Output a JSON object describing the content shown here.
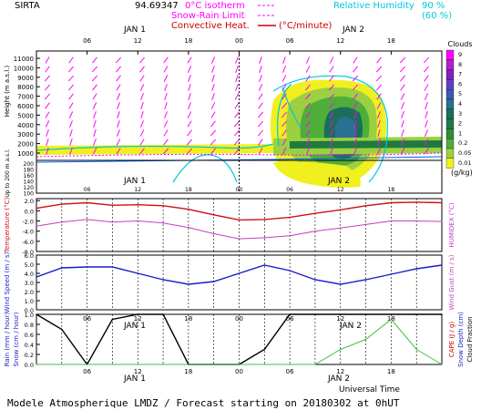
{
  "header": {
    "station": "SIRTA",
    "coords": "94.69347",
    "legend_isotherm": "0°C isotherm",
    "legend_snow_rain": "Snow-Rain Limit",
    "legend_convective": "Convective Heat.",
    "legend_convective_unit": "(°C/minute)",
    "rh_label": "Relative Humidity",
    "rh_90": "90 %",
    "rh_60": "(60 %)",
    "jan1": "JAN 1",
    "jan2": "JAN 2",
    "x_ticks": [
      "06",
      "12",
      "18",
      "00",
      "06",
      "12",
      "18"
    ]
  },
  "footer": {
    "universal_time": "Universal Time",
    "model_line": "Modele Atmospherique LMDZ / Forecast starting on 20180302 at 0hUT"
  },
  "colors": {
    "axes": "#000000",
    "wind_arrow": "#ff00ff",
    "temperature": "#d01010",
    "humidex": "#c040c0",
    "wind": "#1a1acc",
    "snow_rain": "#ff00ff",
    "convective": "#cc0000",
    "rh90": "#00c8d8",
    "precip": "#000000",
    "cape": "#40c040"
  },
  "chart_data": [
    {
      "type": "heatmap",
      "panel": "clouds",
      "ylabel": "Height (m a.s.l.)",
      "ylabel2": "Up to 200 m a.s.l.",
      "y_ticks_upper": [
        11000,
        10000,
        9000,
        8000,
        7000,
        6000,
        5000,
        4000,
        3000,
        2000,
        1000
      ],
      "y_ticks_lower": [
        200,
        180,
        160,
        140,
        120,
        100
      ],
      "colorbar": {
        "title": "Clouds",
        "unit": "(g/kg)",
        "levels": [
          "9",
          "8",
          "7",
          "6",
          "5",
          "4",
          "3",
          "2",
          "1",
          "0.2",
          "0.05",
          "0.01"
        ],
        "colors": [
          "#ff00ff",
          "#b020d0",
          "#8020c0",
          "#6040c8",
          "#3c5ab0",
          "#2a7090",
          "#1b6e5a",
          "#1e7a40",
          "#2e8b3a",
          "#4fae3a",
          "#9bd040",
          "#f0f020"
        ]
      }
    },
    {
      "type": "line",
      "panel": "temperature",
      "ylabel": "Temperature (°C)",
      "ylabel_right": "HUMIDEX (°C)",
      "y_ticks": [
        2.0,
        0.0,
        -2.0,
        -4.0,
        -6.0,
        -8.0
      ],
      "ylim": [
        -8,
        2.4
      ],
      "hours": [
        0,
        3,
        6,
        9,
        12,
        15,
        18,
        21,
        24,
        27,
        30,
        33,
        36,
        39,
        42,
        45,
        48
      ],
      "series": [
        {
          "name": "Temperature",
          "values": [
            0.5,
            1.3,
            1.6,
            1.1,
            1.2,
            1.0,
            0.3,
            -0.8,
            -1.8,
            -1.7,
            -1.3,
            -0.5,
            0.2,
            1.0,
            1.6,
            1.7,
            1.6
          ]
        },
        {
          "name": "Humidex",
          "values": [
            -3.0,
            -2.2,
            -1.7,
            -2.2,
            -2.0,
            -2.4,
            -3.3,
            -4.5,
            -5.5,
            -5.3,
            -4.9,
            -4.0,
            -3.4,
            -2.7,
            -2.0,
            -2.0,
            -2.1
          ]
        }
      ]
    },
    {
      "type": "line",
      "panel": "wind",
      "ylabel": "Wind Speed (m / s)",
      "ylabel_right": "Wind Gust (m / s)",
      "y_ticks": [
        6.0,
        5.0,
        4.0,
        3.0,
        2.0,
        1.0,
        0.0
      ],
      "ylim": [
        0,
        6
      ],
      "hours": [
        0,
        3,
        6,
        9,
        12,
        15,
        18,
        21,
        24,
        27,
        30,
        33,
        36,
        39,
        42,
        45,
        48
      ],
      "series": [
        {
          "name": "Wind Speed",
          "values": [
            3.6,
            4.6,
            4.7,
            4.7,
            4.0,
            3.3,
            2.8,
            3.1,
            4.0,
            4.9,
            4.3,
            3.3,
            2.8,
            3.3,
            3.9,
            4.5,
            4.9
          ]
        }
      ]
    },
    {
      "type": "line",
      "panel": "precip",
      "ylabel": "Rain (mm / hour)",
      "ylabel2": "Snow (cm / hour)",
      "ylabel_right": "CAPE (J / g)",
      "ylabel_right2": "Snow Depth (cm)",
      "ylabel_right3": "Cloud Fraction",
      "y_ticks": [
        1.0,
        0.8,
        0.6,
        0.4,
        0.2,
        0.0
      ],
      "ylim": [
        0,
        1
      ],
      "hours": [
        0,
        3,
        6,
        9,
        12,
        15,
        18,
        21,
        24,
        27,
        30,
        33,
        36,
        39,
        42,
        45,
        48
      ],
      "series": [
        {
          "name": "Cloud Fraction",
          "values": [
            1.0,
            0.7,
            0.0,
            0.9,
            1.0,
            1.0,
            0.0,
            0.0,
            0.0,
            0.3,
            1.0,
            1.0,
            1.0,
            1.0,
            1.0,
            1.0,
            1.0
          ]
        },
        {
          "name": "CAPE",
          "values": [
            0,
            0,
            0,
            0,
            0,
            0,
            0,
            0,
            0,
            0,
            0,
            0,
            0.3,
            0.5,
            0.9,
            0.3,
            0
          ]
        }
      ]
    }
  ]
}
